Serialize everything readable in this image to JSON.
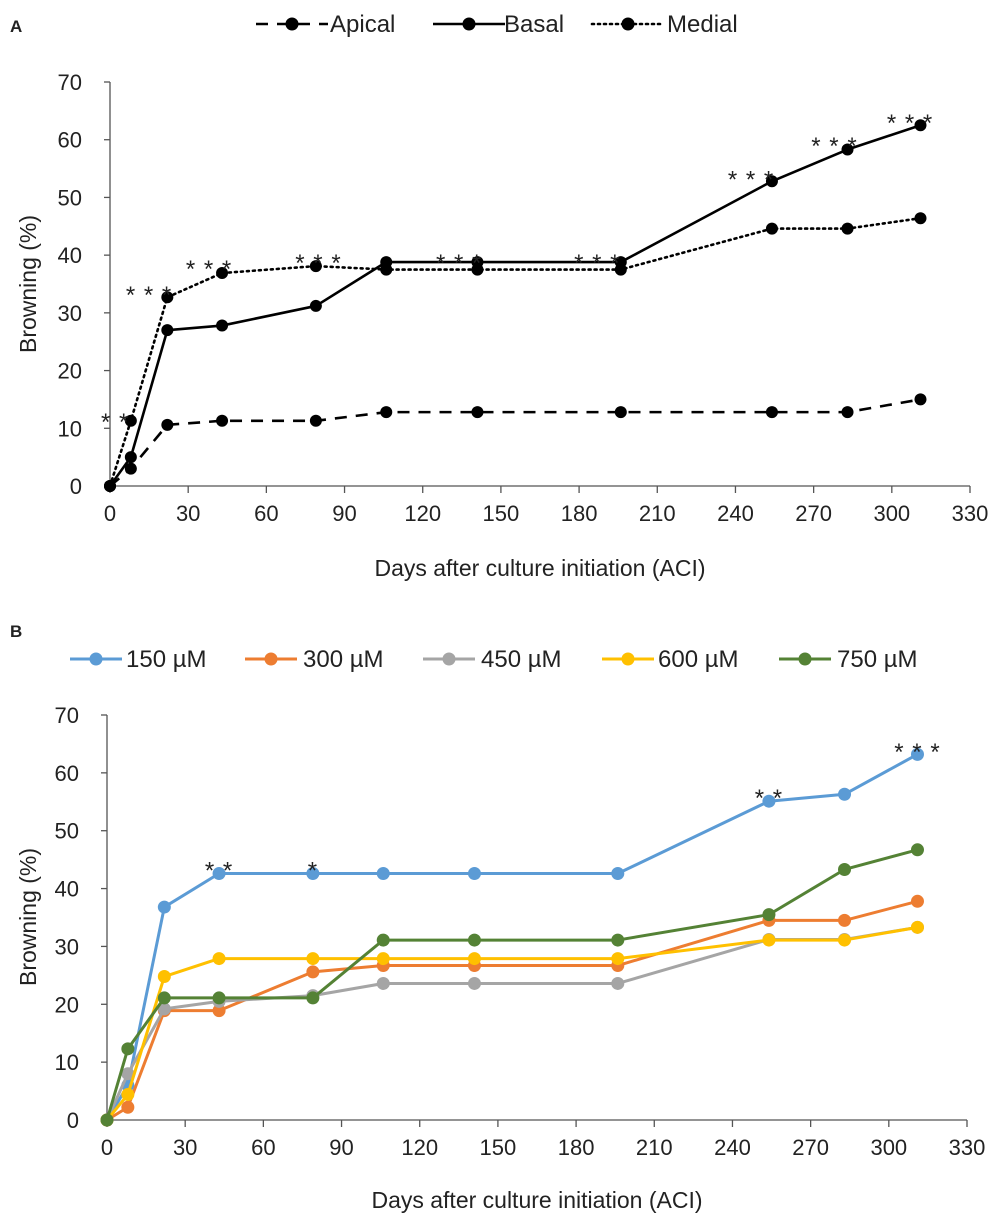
{
  "chart_data": [
    {
      "panel_label": "A",
      "type": "line",
      "xlabel": "Days after culture initiation (ACI)",
      "ylabel": "Browning (%)",
      "xlim": [
        0,
        330
      ],
      "ylim": [
        0,
        70
      ],
      "x_ticks": [
        "0",
        "30",
        "60",
        "90",
        "120",
        "150",
        "180",
        "210",
        "240",
        "270",
        "300",
        "330"
      ],
      "y_ticks": [
        "0",
        "10",
        "20",
        "30",
        "40",
        "50",
        "60",
        "70"
      ],
      "x": [
        0,
        8,
        22,
        43,
        79,
        106,
        141,
        196,
        254,
        283,
        311
      ],
      "legend_position": "top",
      "series": [
        {
          "name": "Apical",
          "dash": "dashed",
          "color": "#000000",
          "values": [
            0,
            3,
            10.6,
            11.3,
            11.3,
            12.8,
            12.8,
            12.8,
            12.8,
            12.8,
            15
          ]
        },
        {
          "name": "Basal",
          "dash": "solid",
          "color": "#000000",
          "values": [
            0,
            5,
            27,
            27.8,
            31.2,
            38.8,
            38.8,
            38.8,
            52.8,
            58.3,
            62.5
          ]
        },
        {
          "name": "Medial",
          "dash": "dotted",
          "color": "#000000",
          "values": [
            0,
            11.3,
            32.7,
            36.9,
            38.1,
            37.5,
            37.5,
            37.5,
            44.6,
            44.6,
            46.4
          ]
        }
      ],
      "annotations": [
        {
          "x": 2,
          "y": 12.5,
          "text": "* *"
        },
        {
          "x": 15,
          "y": 34.5,
          "text": "* * *"
        },
        {
          "x": 38,
          "y": 39,
          "text": "* * *"
        },
        {
          "x": 80,
          "y": 40,
          "text": "* * *"
        },
        {
          "x": 134,
          "y": 40,
          "text": "* * *"
        },
        {
          "x": 187,
          "y": 40,
          "text": "* * *"
        },
        {
          "x": 246,
          "y": 54.5,
          "text": "* * *"
        },
        {
          "x": 278,
          "y": 60.3,
          "text": "* * *"
        },
        {
          "x": 307,
          "y": 64.3,
          "text": "* * *"
        }
      ]
    },
    {
      "panel_label": "B",
      "type": "line",
      "xlabel": "Days after culture initiation (ACI)",
      "ylabel": "Browning (%)",
      "xlim": [
        0,
        330
      ],
      "ylim": [
        0,
        70
      ],
      "x_ticks": [
        "0",
        "30",
        "60",
        "90",
        "120",
        "150",
        "180",
        "210",
        "240",
        "270",
        "300",
        "330"
      ],
      "y_ticks": [
        "0",
        "10",
        "20",
        "30",
        "40",
        "50",
        "60",
        "70"
      ],
      "x": [
        0,
        8,
        22,
        43,
        79,
        106,
        141,
        196,
        254,
        283,
        311
      ],
      "legend_position": "top",
      "series": [
        {
          "name": "150 µM",
          "color": "#5B9BD5",
          "values": [
            0,
            6,
            36.8,
            42.6,
            42.6,
            42.6,
            42.6,
            42.6,
            55.1,
            56.3,
            63.2
          ]
        },
        {
          "name": "300 µM",
          "color": "#ED7D31",
          "values": [
            0,
            2.2,
            18.9,
            18.9,
            25.6,
            26.7,
            26.7,
            26.7,
            34.5,
            34.5,
            37.8
          ]
        },
        {
          "name": "450 µM",
          "color": "#A5A5A5",
          "values": [
            0,
            8,
            19.2,
            20.5,
            21.5,
            23.6,
            23.6,
            23.6,
            31.2,
            31.2,
            33.3
          ]
        },
        {
          "name": "600 µM",
          "color": "#FFC000",
          "values": [
            0,
            4.4,
            24.8,
            27.9,
            27.9,
            27.9,
            27.9,
            27.9,
            31.1,
            31.1,
            33.3
          ]
        },
        {
          "name": "750 µM",
          "color": "#548235",
          "values": [
            0,
            12.3,
            21.1,
            21.1,
            21.1,
            31.1,
            31.1,
            31.1,
            35.5,
            43.3,
            46.7
          ]
        }
      ],
      "annotations": [
        {
          "x": 43,
          "y": 44.5,
          "text": "* *"
        },
        {
          "x": 79,
          "y": 44.5,
          "text": "*"
        },
        {
          "x": 254,
          "y": 57,
          "text": "* *"
        },
        {
          "x": 311,
          "y": 65,
          "text": "* * *"
        }
      ]
    }
  ]
}
